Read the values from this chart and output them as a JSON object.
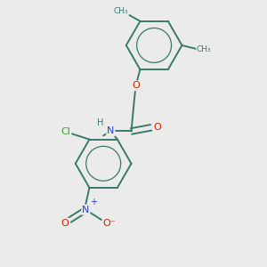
{
  "bg_color": "#ebebeb",
  "bond_color": "#3a7a6a",
  "bond_width": 1.4,
  "atom_colors": {
    "O": "#cc2200",
    "N": "#2244cc",
    "Cl": "#22aa22",
    "C": "#3a7a6a",
    "H": "#3a7a6a"
  },
  "figsize": [
    3.0,
    3.0
  ],
  "dpi": 100,
  "xlim": [
    -1.6,
    1.6
  ],
  "ylim": [
    -1.9,
    1.7
  ]
}
